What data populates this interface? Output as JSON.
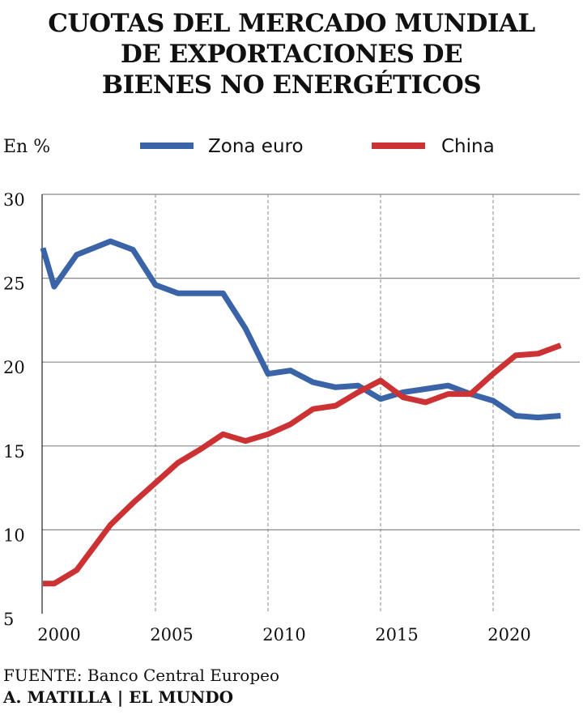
{
  "title_lines": [
    "CUOTAS DEL MERCADO MUNDIAL",
    "DE EXPORTACIONES DE",
    "BIENES NO ENERGÉTICOS"
  ],
  "source_text": "FUENTE: Banco Central Europeo",
  "credit_text": "A. MATILLA | EL MUNDO",
  "colors": {
    "zona_euro": "#3a63a8",
    "china": "#cc3233",
    "grid": "#888888",
    "text": "#111111"
  },
  "chart_data": {
    "type": "line",
    "unit_label": "En %",
    "ylim": [
      5,
      30
    ],
    "xlim": [
      2000,
      2023
    ],
    "yticks": [
      5,
      10,
      15,
      20,
      25,
      30
    ],
    "xticks": [
      2000,
      2005,
      2010,
      2015,
      2020
    ],
    "grid": true,
    "legend_position": "top",
    "x": [
      2000,
      2000.5,
      2001.5,
      2003,
      2004,
      2005,
      2006,
      2007,
      2008,
      2009,
      2010,
      2011,
      2012,
      2013,
      2014,
      2015,
      2016,
      2017,
      2018,
      2019,
      2020,
      2021,
      2022,
      2023
    ],
    "series": [
      {
        "name": "Zona euro",
        "color": "#3a63a8",
        "values": [
          26.8,
          24.5,
          26.4,
          27.2,
          26.7,
          24.6,
          24.1,
          24.1,
          24.1,
          22.0,
          19.3,
          19.5,
          18.8,
          18.5,
          18.6,
          17.8,
          18.2,
          18.4,
          18.6,
          18.1,
          17.7,
          16.8,
          16.7,
          16.8
        ]
      },
      {
        "name": "China",
        "color": "#cc3233",
        "values": [
          6.8,
          6.8,
          7.6,
          10.3,
          11.6,
          12.8,
          14.0,
          14.8,
          15.7,
          15.3,
          15.7,
          16.3,
          17.2,
          17.4,
          18.2,
          18.9,
          17.9,
          17.6,
          18.1,
          18.1,
          19.3,
          20.4,
          20.5,
          21.0
        ]
      }
    ]
  }
}
